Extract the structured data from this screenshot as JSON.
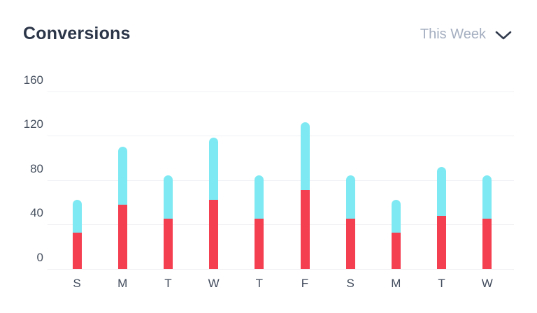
{
  "header": {
    "title": "Conversions",
    "range_selector": {
      "label": "This Week",
      "icon": "chevron-down-icon"
    }
  },
  "colors": {
    "background": "#FFFFFF",
    "title_text": "#2C3649",
    "selector_text": "#A5AFC0",
    "chevron": "#333D4F",
    "axis_label_y": "#46505F",
    "axis_label_x": "#414B5C",
    "gridline": "#F0F1F4",
    "bar_bottom": "#F43F51",
    "bar_top": "#7EE9F3"
  },
  "chart_data": {
    "type": "bar",
    "stacked": true,
    "title": "Conversions",
    "categories": [
      "S",
      "M",
      "T",
      "W",
      "T",
      "F",
      "S",
      "M",
      "T",
      "W"
    ],
    "series": [
      {
        "name": "bottom-segment",
        "color": "#F43F51",
        "values": [
          33,
          58,
          45,
          62,
          45,
          71,
          45,
          33,
          48,
          45
        ]
      },
      {
        "name": "top-segment",
        "color": "#7EE9F3",
        "values": [
          29,
          52,
          39,
          56,
          39,
          61,
          39,
          29,
          44,
          39
        ]
      }
    ],
    "totals": [
      62,
      110,
      84,
      118,
      84,
      132,
      84,
      62,
      92,
      84
    ],
    "xlabel": "",
    "ylabel": "",
    "y_ticks": [
      0,
      40,
      80,
      120,
      160
    ],
    "ylim": [
      0,
      160
    ],
    "grid": "horizontal",
    "legend": "none"
  }
}
